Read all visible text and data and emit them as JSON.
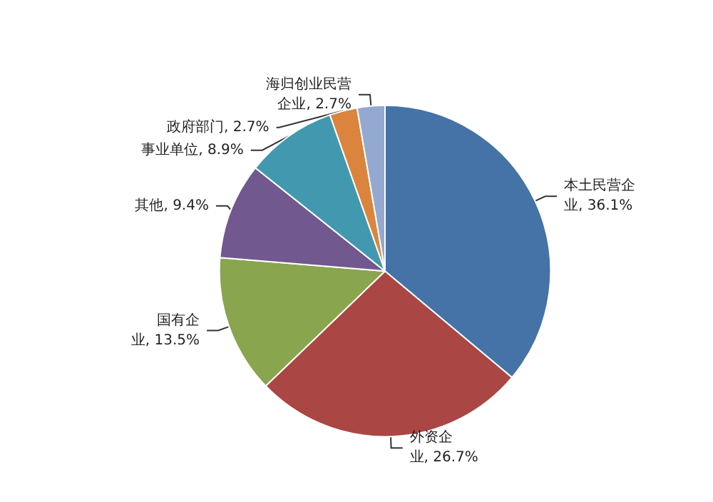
{
  "chart_data": {
    "type": "pie",
    "categories": [
      "本土民营企业",
      "外资企业",
      "国有企业",
      "其他",
      "事业单位",
      "政府部门",
      "海归创业民营企业"
    ],
    "values": [
      36.1,
      26.7,
      13.5,
      9.4,
      8.9,
      2.7,
      2.7
    ],
    "colors": [
      "#4572a7",
      "#aa4643",
      "#89a54e",
      "#71588f",
      "#4198af",
      "#db843d",
      "#93a9cf"
    ],
    "value_labels": [
      "36.1%",
      "26.7%",
      "13.5%",
      "9.4%",
      "8.9%",
      "2.7%",
      "2.7%"
    ],
    "legend": false
  }
}
